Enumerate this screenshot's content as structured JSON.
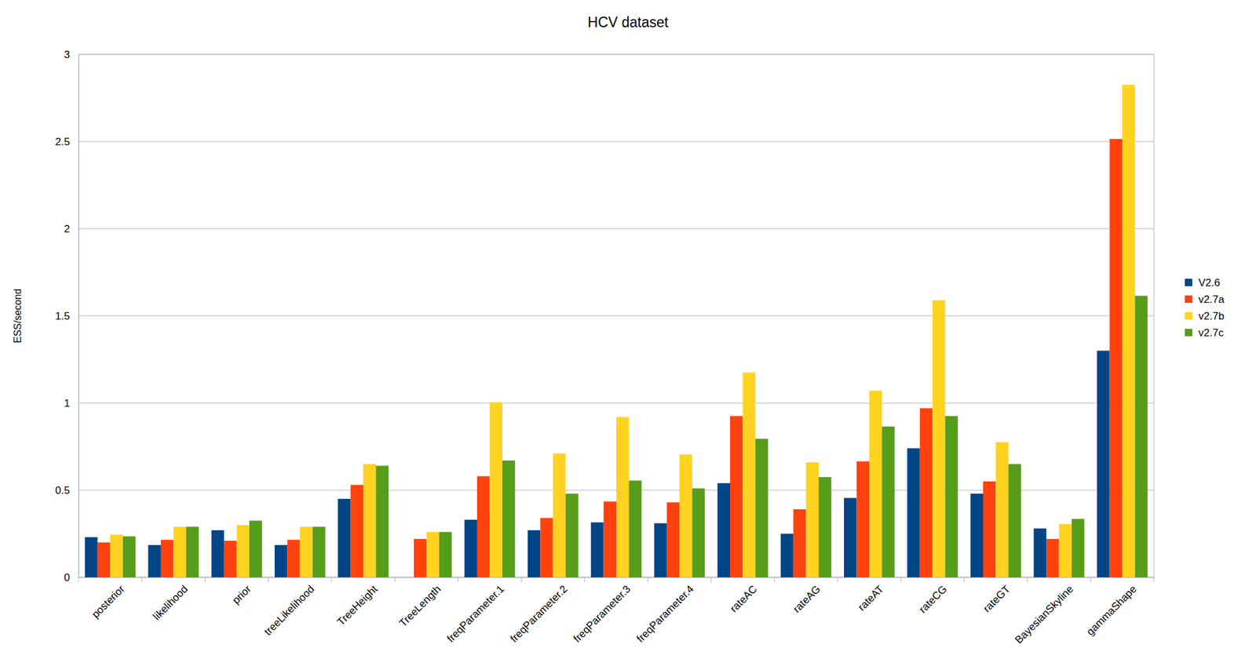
{
  "chart_data": {
    "type": "bar",
    "title": "HCV dataset",
    "y_label": "ESS/second",
    "categories": [
      "posterior",
      "likelihood",
      "prior",
      "treeLikelihood",
      "TreeHeight",
      "TreeLength",
      "freqParameter.1",
      "freqParameter.2",
      "freqParameter.3",
      "freqParameter.4",
      "rateAC",
      "rateAG",
      "rateAT",
      "rateCG",
      "rateGT",
      "BayesianSkyline",
      "gammaShape"
    ],
    "series": [
      {
        "name": "V2.6",
        "color": "#004586",
        "values": [
          0.23,
          0.185,
          0.27,
          0.185,
          0.45,
          null,
          0.33,
          0.27,
          0.315,
          0.31,
          0.54,
          0.25,
          0.455,
          0.74,
          0.48,
          0.28,
          1.3
        ]
      },
      {
        "name": "v2.7a",
        "color": "#ff420e",
        "values": [
          0.2,
          0.215,
          0.21,
          0.215,
          0.53,
          0.22,
          0.58,
          0.34,
          0.435,
          0.43,
          0.925,
          0.39,
          0.665,
          0.97,
          0.55,
          0.22,
          2.515
        ]
      },
      {
        "name": "v2.7b",
        "color": "#ffd320",
        "values": [
          0.245,
          0.29,
          0.3,
          0.29,
          0.65,
          0.26,
          1.005,
          0.71,
          0.92,
          0.705,
          1.175,
          0.66,
          1.07,
          1.59,
          0.775,
          0.305,
          2.825
        ]
      },
      {
        "name": "v2.7c",
        "color": "#579d1c",
        "values": [
          0.235,
          0.29,
          0.325,
          0.29,
          0.64,
          0.26,
          0.67,
          0.48,
          0.555,
          0.51,
          0.795,
          0.575,
          0.865,
          0.925,
          0.65,
          0.335,
          1.615
        ]
      }
    ],
    "ylim": [
      0,
      3
    ],
    "yticks": [
      0,
      0.5,
      1,
      1.5,
      2,
      2.5,
      3
    ],
    "grid": true,
    "legend": "right"
  }
}
